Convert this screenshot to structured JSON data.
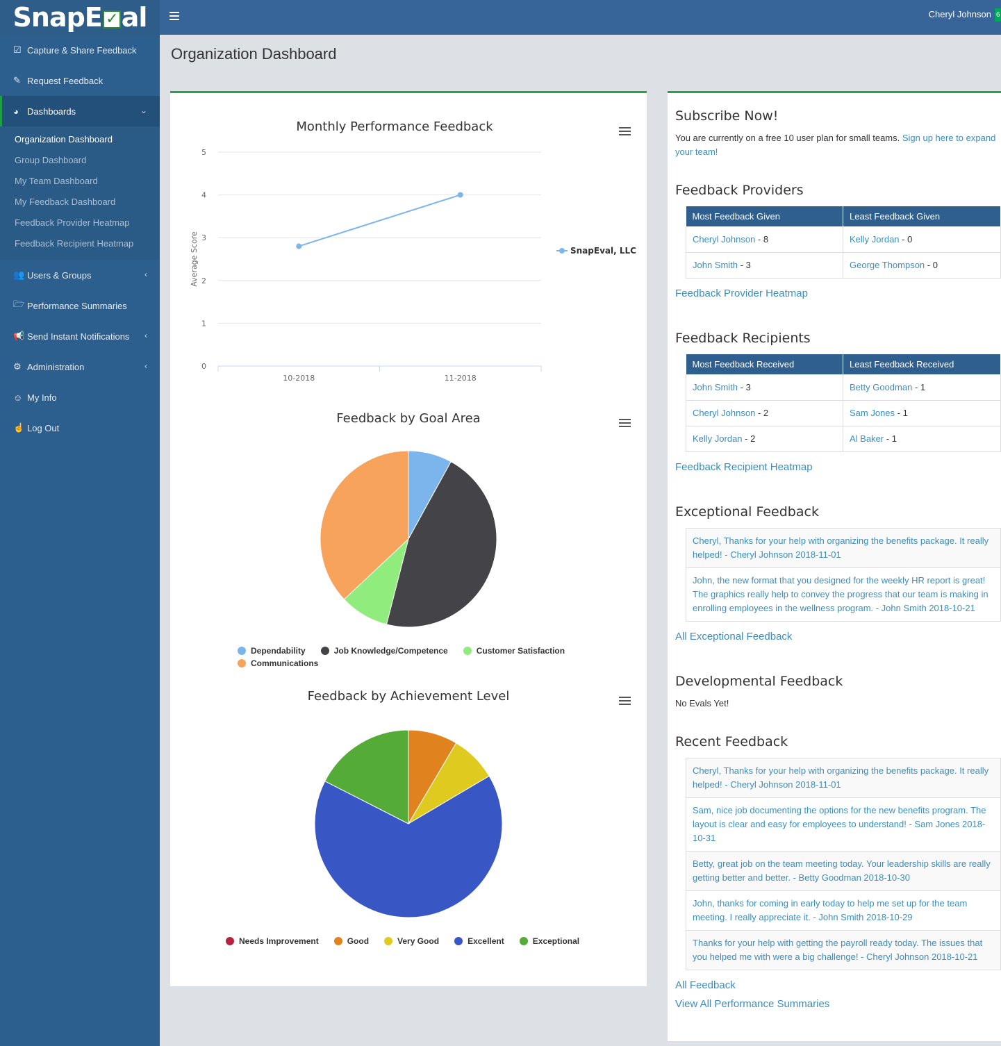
{
  "brand": {
    "pre": "SnapE",
    "check": "✓",
    "post": "al"
  },
  "header": {
    "user_name": "Cheryl Johnson",
    "badge": "6"
  },
  "sidebar": {
    "items": [
      {
        "label": "Capture & Share Feedback",
        "icon": "check-square-icon"
      },
      {
        "label": "Request Feedback",
        "icon": "edit-icon"
      },
      {
        "label": "Dashboards",
        "icon": "pie-chart-icon"
      },
      {
        "label": "Users & Groups",
        "icon": "users-icon"
      },
      {
        "label": "Performance Summaries",
        "icon": "folder-open-icon"
      },
      {
        "label": "Send Instant Notifications",
        "icon": "bullhorn-icon"
      },
      {
        "label": "Administration",
        "icon": "gear-icon"
      },
      {
        "label": "My Info",
        "icon": "smile-icon"
      },
      {
        "label": "Log Out",
        "icon": "hand-icon"
      }
    ],
    "submenu": [
      "Organization Dashboard",
      "Group Dashboard",
      "My Team Dashboard",
      "My Feedback Dashboard",
      "Feedback Provider Heatmap",
      "Feedback Recipient Heatmap"
    ]
  },
  "page": {
    "title": "Organization Dashboard"
  },
  "chart_data": [
    {
      "type": "line",
      "title": "Monthly Performance Feedback",
      "ylabel": "Average Score",
      "xlabel": "",
      "categories": [
        "10-2018",
        "11-2018"
      ],
      "series": [
        {
          "name": "SnapEval, LLC",
          "values": [
            2.8,
            4.0
          ],
          "color": "#7cb5ec"
        }
      ],
      "ylim": [
        0,
        5
      ],
      "yticks": [
        0,
        1,
        2,
        3,
        4,
        5
      ],
      "grid": true,
      "legend": "right"
    },
    {
      "type": "pie",
      "title": "Feedback by Goal Area",
      "labels": [
        "Dependability",
        "Job Knowledge/Competence",
        "Customer Satisfaction",
        "Communications"
      ],
      "values": [
        8,
        46,
        9,
        37
      ],
      "colors": [
        "#7cb5ec",
        "#434348",
        "#90ed7d",
        "#f7a35c"
      ],
      "legend": "bottom"
    },
    {
      "type": "pie",
      "title": "Feedback by Achievement Level",
      "labels": [
        "Needs Improvement",
        "Good",
        "Very Good",
        "Excellent",
        "Exceptional"
      ],
      "values": [
        0,
        8.5,
        8,
        66,
        17.5
      ],
      "colors": [
        "#b5243c",
        "#e0821e",
        "#dfcb1f",
        "#3857c4",
        "#55ab37"
      ],
      "legend": "bottom"
    }
  ],
  "right": {
    "subscribe": {
      "title": "Subscribe Now!",
      "text": "You are currently on a free 10 user plan for small teams. ",
      "link": "Sign up here to expand your team!"
    },
    "providers": {
      "title": "Feedback Providers",
      "col1": "Most Feedback Given",
      "col2": "Least Feedback Given",
      "rows": [
        {
          "a_name": "Cheryl Johnson",
          "a_count": " - 8",
          "b_name": "Kelly Jordan",
          "b_count": " - 0"
        },
        {
          "a_name": "John Smith",
          "a_count": " - 3",
          "b_name": "George Thompson",
          "b_count": " - 0"
        }
      ],
      "link": "Feedback Provider Heatmap"
    },
    "recipients": {
      "title": "Feedback Recipients",
      "col1": "Most Feedback Received",
      "col2": "Least Feedback Received",
      "rows": [
        {
          "a_name": "John Smith",
          "a_count": " - 3",
          "b_name": "Betty Goodman",
          "b_count": " - 1"
        },
        {
          "a_name": "Cheryl Johnson",
          "a_count": " - 2",
          "b_name": "Sam Jones",
          "b_count": " - 1"
        },
        {
          "a_name": "Kelly Jordan",
          "a_count": " - 2",
          "b_name": "Al Baker",
          "b_count": " - 1"
        }
      ],
      "link": "Feedback Recipient Heatmap"
    },
    "exceptional": {
      "title": "Exceptional Feedback",
      "items": [
        "Cheryl, Thanks for your help with organizing the benefits package. It really helped! - Cheryl Johnson 2018-11-01",
        "John, the new format that you designed for the weekly HR report is great! The graphics really help to convey the progress that our team is making in enrolling employees in the wellness program. - John Smith 2018-10-21"
      ],
      "link": "All Exceptional Feedback"
    },
    "developmental": {
      "title": "Developmental Feedback",
      "text": "No Evals Yet!"
    },
    "recent": {
      "title": "Recent Feedback",
      "items": [
        "Cheryl, Thanks for your help with organizing the benefits package. It really helped! - Cheryl Johnson 2018-11-01",
        "Sam, nice job documenting the options for the new benefits program. The layout is clear and easy for employees to understand! - Sam Jones 2018-10-31",
        "Betty, great job on the team meeting today. Your leadership skills are really getting better and better. - Betty Goodman 2018-10-30",
        "John, thanks for coming in early today to help me set up for the team meeting. I really appreciate it. - John Smith 2018-10-29",
        "Thanks for your help with getting the payroll ready today. The issues that you helped me with were a big challenge! - Cheryl Johnson 2018-10-21"
      ],
      "link": "All Feedback",
      "link2": "View All Performance Summaries"
    }
  }
}
